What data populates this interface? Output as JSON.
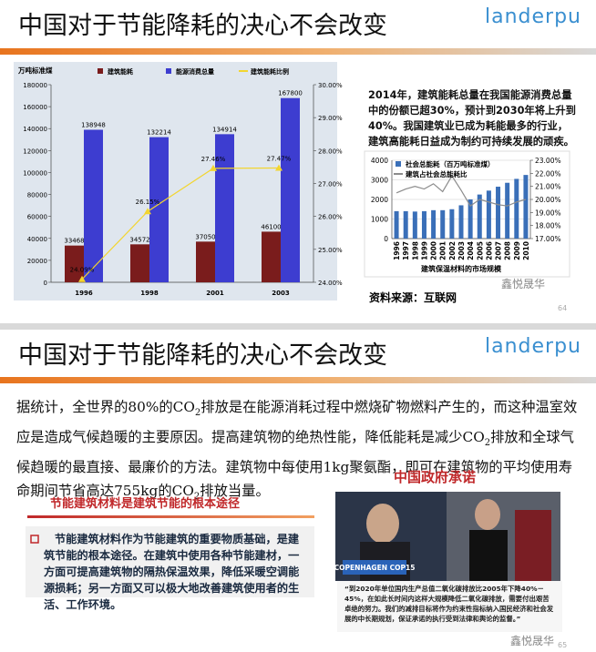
{
  "slides": [
    {
      "title": "中国对于节能降耗的决心不会改变",
      "logo": "landerpu",
      "text": "2014年，建筑能耗总量在我国能源消费总量中的份额已超30%，预计到2030年将上升到40%。我国建筑业已成为耗能最多的行业，建筑高能耗日益成为制约可持续发展的顽疾。",
      "source": "资料来源：互联网",
      "watermark": "鑫悦晟华",
      "page": "64"
    },
    {
      "title": "中国对于节能降耗的决心不会改变",
      "logo": "landerpu",
      "paragraph": [
        "据统计，全世界的80%的CO",
        "2",
        "排放是在能源消耗过程中燃烧矿物燃料产生的，而这种温室效应是造成气候趋暖的主要原因。提高建筑物的绝热性能，降低能耗是减少CO",
        "2",
        "排放和全球气候趋暖的最直接、最廉价的方法。建筑物中每使用1kg聚氨酯，即可在建筑物的平均使用寿命期间节省高达755kg的CO",
        "2",
        "排放当量。"
      ],
      "heading": "节能建筑材料是建筑节能的根本途径",
      "bullet": "节能建筑材料作为节能建筑的重要物质基础，是建筑节能的根本途径。在建筑中使用各种节能建材，一方面可提高建筑物的隔热保温效果，降低采暖空调能源损耗；另一方面又可以极大地改善建筑使用者的生活、工作环境。",
      "photo_heading": "中国政府承诺",
      "photo_text": "COPENHAGEN COP15",
      "caption": "“到2020年单位国内生产总值二氧化碳排放比2005年下降40%－45%，在如此长时间内这样大规模降低二氧化碳排放，需要付出艰苦卓绝的努力。我们的减排目标将作为约束性指标纳入国民经济和社会发展的中长期规划，保证承诺的执行受到法律和舆论的监督。”",
      "watermark": "鑫悦晟华",
      "page": "65"
    }
  ],
  "chart_data": [
    {
      "type": "bar",
      "ylabel": "万吨标准煤",
      "categories": [
        "1996",
        "1998",
        "2001",
        "2003"
      ],
      "series": [
        {
          "name": "建筑能耗",
          "color": "#7a1c1c",
          "values": [
            33468,
            34572,
            37050,
            46100
          ]
        },
        {
          "name": "能源消费总量",
          "color": "#3d3dd0",
          "values": [
            138948,
            132214,
            134914,
            167800
          ]
        },
        {
          "name": "建筑能耗比例",
          "color": "#f2d530",
          "axis": "y2",
          "values": [
            24.09,
            26.15,
            27.46,
            27.47
          ],
          "value_labels": [
            "24.09%",
            "26.15%",
            "27.46%",
            "27.47%"
          ]
        }
      ],
      "ylim": [
        0,
        180000
      ],
      "yticks": [
        0,
        20000,
        40000,
        60000,
        80000,
        100000,
        120000,
        140000,
        160000,
        180000
      ],
      "y2lim": [
        24,
        30
      ],
      "y2ticks": [
        {
          "value": 24,
          "label": "24.00%"
        },
        {
          "value": 25,
          "label": "25.00%"
        },
        {
          "value": 26,
          "label": "26.00%"
        },
        {
          "value": 27,
          "label": "27.00%"
        },
        {
          "value": 28,
          "label": "28.00%"
        },
        {
          "value": 29,
          "label": "29.00%"
        },
        {
          "value": 30,
          "label": "30.00%"
        }
      ],
      "grid": false
    },
    {
      "type": "bar",
      "title": "建筑保温材料的市场规模",
      "categories": [
        "1996",
        "1997",
        "1998",
        "1999",
        "2000",
        "2001",
        "2002",
        "2003",
        "2004",
        "2005",
        "2006",
        "2007",
        "2008",
        "2009",
        "2010"
      ],
      "series": [
        {
          "name": "社会总能耗（百万吨标准煤）",
          "color": "#3a6fb8",
          "values": [
            1400,
            1400,
            1380,
            1400,
            1450,
            1450,
            1500,
            1700,
            2000,
            2250,
            2450,
            2650,
            2850,
            3050,
            3250
          ]
        },
        {
          "name": "建筑占社会总能耗比",
          "color": "#8c8c8c",
          "axis": "y2",
          "values": [
            20.5,
            20.8,
            21.0,
            20.8,
            21.2,
            20.6,
            21.8,
            20.7,
            19.5,
            20.0,
            19.8,
            19.6,
            19.5,
            19.8,
            20.0
          ]
        }
      ],
      "ylim": [
        0,
        4000
      ],
      "yticks": [
        0,
        1000,
        2000,
        3000,
        4000
      ],
      "y2lim": [
        17,
        23
      ],
      "y2ticks": [
        {
          "value": 17,
          "label": "17.00%"
        },
        {
          "value": 18,
          "label": "18.00%"
        },
        {
          "value": 19,
          "label": "19.00%"
        },
        {
          "value": 20,
          "label": "20.00%"
        },
        {
          "value": 21,
          "label": "21.00%"
        },
        {
          "value": 22,
          "label": "22.00%"
        },
        {
          "value": 23,
          "label": "23.00%"
        }
      ],
      "grid": true
    }
  ]
}
